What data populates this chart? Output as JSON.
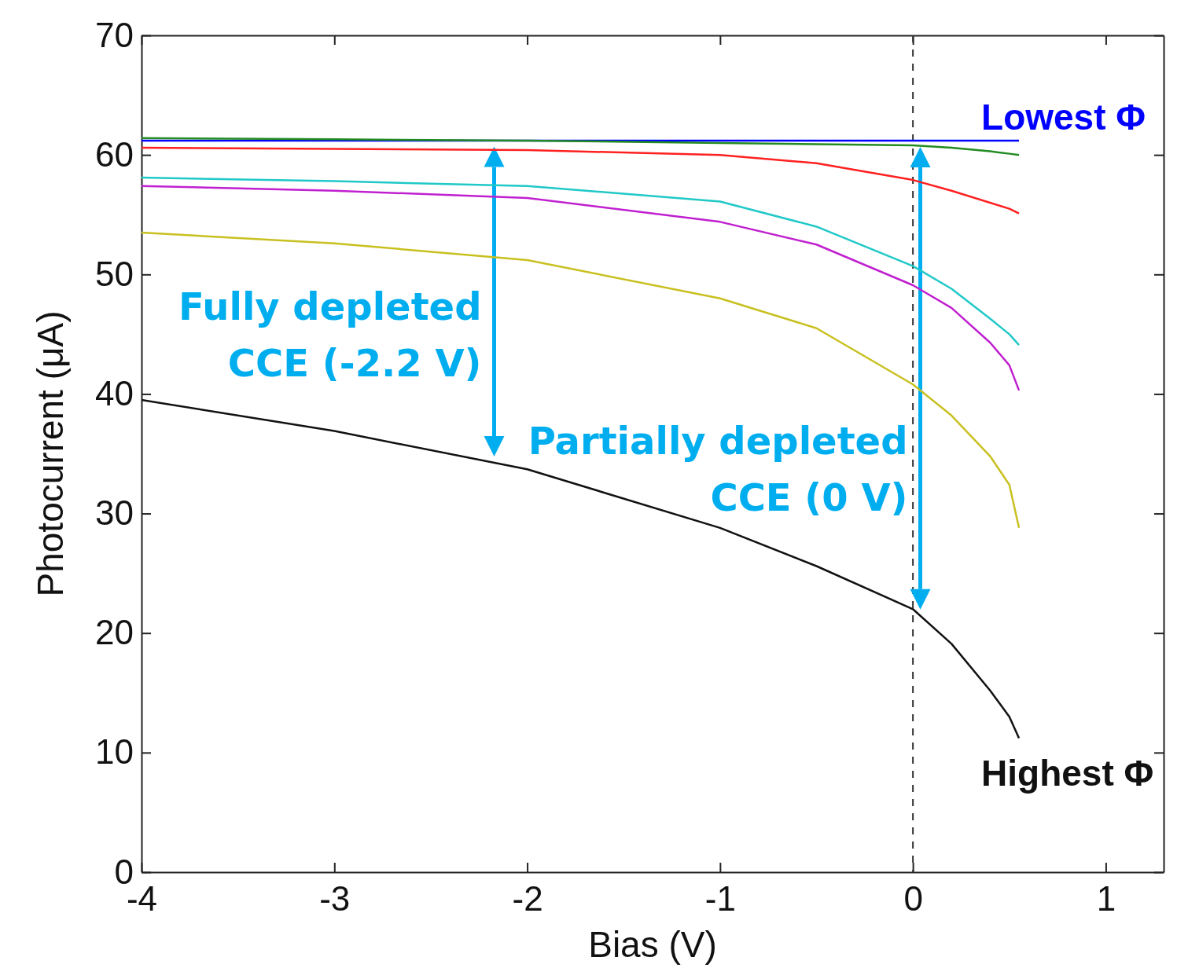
{
  "chart_data": {
    "type": "line",
    "xlabel": "Bias (V)",
    "ylabel": "Photocurrent (μA)",
    "xlim": [
      -4,
      1.3
    ],
    "xticks": [
      -4,
      -3,
      -2,
      -1,
      0,
      1
    ],
    "ylim": [
      0,
      70
    ],
    "yticks": [
      0,
      10,
      20,
      30,
      40,
      50,
      60,
      70
    ],
    "x": [
      -4,
      -3,
      -2,
      -1,
      -0.5,
      0,
      0.2,
      0.4,
      0.5,
      0.55
    ],
    "series": [
      {
        "name": "Lowest Φ",
        "color": "#0000ff",
        "values": [
          61.2,
          61.2,
          61.2,
          61.2,
          61.2,
          61.2,
          61.2,
          61.2,
          61.2,
          61.2
        ]
      },
      {
        "color": "#228b22",
        "values": [
          61.4,
          61.3,
          61.2,
          61.0,
          60.9,
          60.8,
          60.6,
          60.3,
          60.1,
          60.0
        ]
      },
      {
        "color": "#ff2020",
        "values": [
          60.6,
          60.5,
          60.4,
          60.0,
          59.3,
          57.9,
          57.0,
          56.0,
          55.5,
          55.1
        ]
      },
      {
        "color": "#20c8c8",
        "values": [
          58.1,
          57.8,
          57.4,
          56.1,
          54.0,
          50.7,
          48.8,
          46.3,
          45.0,
          44.1
        ]
      },
      {
        "color": "#c020d0",
        "values": [
          57.4,
          57.0,
          56.4,
          54.4,
          52.5,
          49.1,
          47.2,
          44.3,
          42.4,
          40.3
        ]
      },
      {
        "color": "#c8c020",
        "values": [
          53.5,
          52.6,
          51.2,
          48.0,
          45.5,
          40.8,
          38.2,
          34.8,
          32.4,
          28.8
        ]
      },
      {
        "name": "Highest Φ",
        "color": "#111111",
        "values": [
          39.5,
          36.9,
          33.7,
          28.8,
          25.6,
          22.0,
          19.1,
          15.2,
          13.0,
          11.2
        ]
      }
    ],
    "ref_lines": [
      {
        "axis": "x",
        "value": 0,
        "color": "#333333",
        "line_style": "dashed"
      }
    ],
    "annotations": [
      "Fully depleted CCE (-2.2 V)",
      "Partially depleted CCE (0 V)"
    ],
    "grid": false,
    "legend": false,
    "marker": "none",
    "line_style": "solid"
  }
}
